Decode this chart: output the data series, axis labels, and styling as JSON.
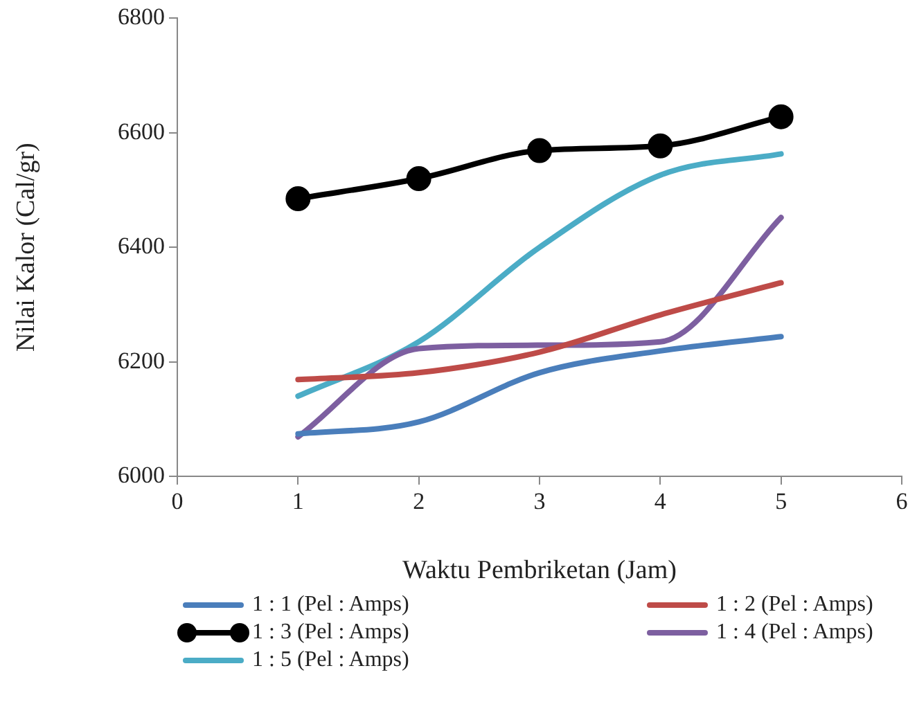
{
  "chart_data": {
    "type": "line",
    "xlabel": "Waktu Pembriketan (Jam)",
    "ylabel": "Nilai Kalor (Cal/gr)",
    "x": [
      1,
      2,
      3,
      4,
      5
    ],
    "xlim": [
      0,
      6
    ],
    "xticks": [
      0,
      1,
      2,
      3,
      4,
      5,
      6
    ],
    "ylim": [
      6000,
      6800
    ],
    "yticks": [
      6000,
      6200,
      6400,
      6600,
      6800
    ],
    "grid": false,
    "legend": "bottom",
    "marker": "none",
    "series": [
      {
        "name": "1 : 1 (Pel : Amps)",
        "color": "#4a7ebb",
        "values": [
          6074,
          6095,
          6181,
          6219,
          6244
        ]
      },
      {
        "name": "1 : 2 (Pel : Amps)",
        "color": "#be4b48",
        "values": [
          6169,
          6181,
          6217,
          6282,
          6338
        ]
      },
      {
        "name": "1 : 3 (Pel : Amps)",
        "color": "#000000",
        "marker": "circle",
        "values": [
          6485,
          6520,
          6569,
          6577,
          6628
        ]
      },
      {
        "name": "1 : 4 (Pel : Amps)",
        "color": "#7d5fa0",
        "values": [
          6069,
          6223,
          6229,
          6235,
          6452
        ]
      },
      {
        "name": "1 : 5 (Pel : Amps)",
        "color": "#4bacc6",
        "values": [
          6140,
          6235,
          6400,
          6526,
          6563
        ]
      }
    ]
  }
}
